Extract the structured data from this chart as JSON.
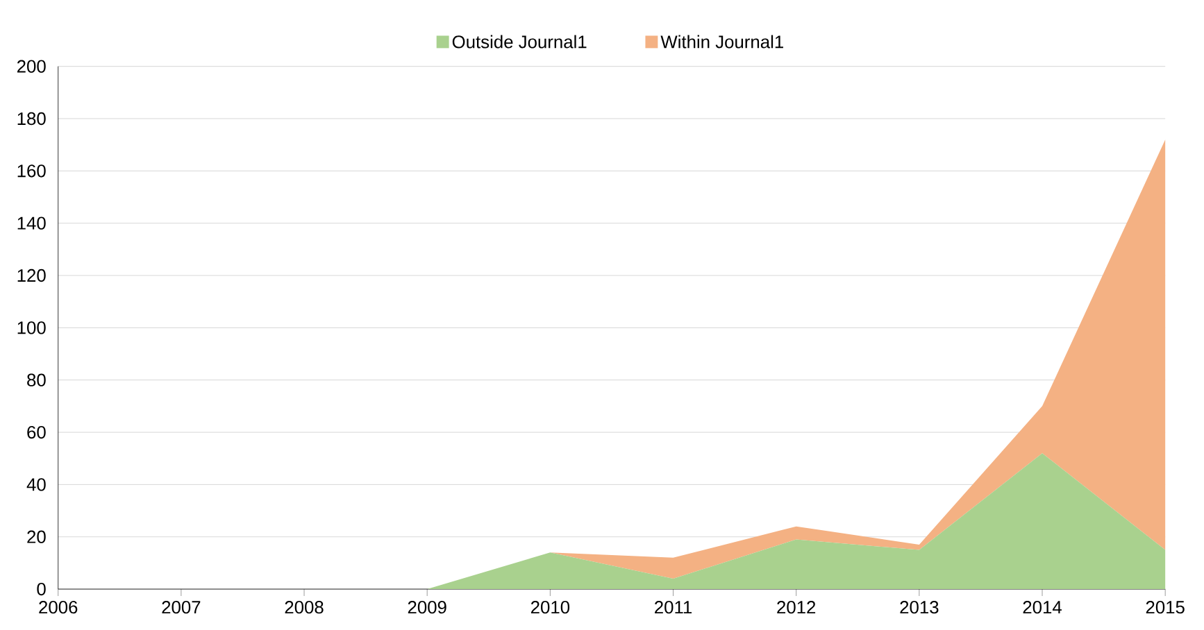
{
  "chart_data": {
    "type": "area",
    "stacked": true,
    "x": [
      2006,
      2007,
      2008,
      2009,
      2010,
      2011,
      2012,
      2013,
      2014,
      2015
    ],
    "series": [
      {
        "name": "Outside Journal1",
        "color": "#a9d18e",
        "values": [
          0,
          0,
          0,
          0,
          14,
          4,
          19,
          15,
          52,
          15
        ]
      },
      {
        "name": "Within Journal1",
        "color": "#f4b183",
        "values": [
          0,
          0,
          0,
          0,
          0,
          8,
          5,
          2,
          18,
          157
        ]
      }
    ],
    "xlim": [
      2006,
      2015
    ],
    "xticks": [
      2006,
      2007,
      2008,
      2009,
      2010,
      2011,
      2012,
      2013,
      2014,
      2015
    ],
    "ylim": [
      0,
      200
    ],
    "yticks": [
      0,
      20,
      40,
      60,
      80,
      100,
      120,
      140,
      160,
      180,
      200
    ],
    "grid": "y",
    "legend": "top"
  }
}
